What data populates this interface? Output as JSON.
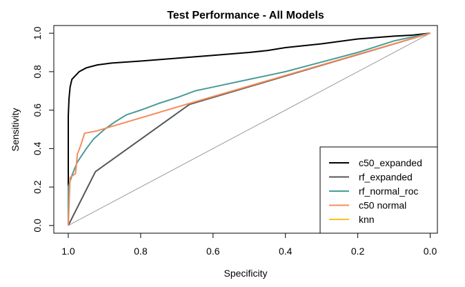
{
  "chart_data": {
    "type": "line",
    "title": "Test Performance - All Models",
    "xlabel": "Specificity",
    "ylabel": "Sensitivity",
    "xlim": [
      1.04,
      -0.02
    ],
    "ylim": [
      -0.04,
      1.04
    ],
    "x_reversed": true,
    "x_ticks": [
      {
        "value": 1.0,
        "label": "1.0"
      },
      {
        "value": 0.8,
        "label": "0.8"
      },
      {
        "value": 0.6,
        "label": "0.6"
      },
      {
        "value": 0.4,
        "label": "0.4"
      },
      {
        "value": 0.2,
        "label": "0.2"
      },
      {
        "value": 0.0,
        "label": "0.0"
      }
    ],
    "y_ticks": [
      {
        "value": 0.0,
        "label": "0.0"
      },
      {
        "value": 0.2,
        "label": "0.2"
      },
      {
        "value": 0.4,
        "label": "0.4"
      },
      {
        "value": 0.6,
        "label": "0.6"
      },
      {
        "value": 0.8,
        "label": "0.8"
      },
      {
        "value": 1.0,
        "label": "1.0"
      }
    ],
    "grid": false,
    "legend_position": "bottom-right",
    "reference_line": {
      "from": [
        1.0,
        0.0
      ],
      "to": [
        0.0,
        1.0
      ],
      "color": "#999999"
    },
    "series": [
      {
        "name": "c50_expanded",
        "color": "#000000",
        "points": [
          [
            1.0,
            0.0
          ],
          [
            1.0,
            0.57
          ],
          [
            0.998,
            0.66
          ],
          [
            0.995,
            0.72
          ],
          [
            0.99,
            0.76
          ],
          [
            0.98,
            0.78
          ],
          [
            0.97,
            0.8
          ],
          [
            0.95,
            0.82
          ],
          [
            0.92,
            0.835
          ],
          [
            0.88,
            0.845
          ],
          [
            0.8,
            0.855
          ],
          [
            0.7,
            0.87
          ],
          [
            0.6,
            0.885
          ],
          [
            0.5,
            0.9
          ],
          [
            0.45,
            0.91
          ],
          [
            0.4,
            0.925
          ],
          [
            0.3,
            0.945
          ],
          [
            0.2,
            0.97
          ],
          [
            0.1,
            0.985
          ],
          [
            0.05,
            0.99
          ],
          [
            0.0,
            1.0
          ]
        ]
      },
      {
        "name": "rf_expanded",
        "color": "#555555",
        "points": [
          [
            1.0,
            0.0
          ],
          [
            0.925,
            0.28
          ],
          [
            0.665,
            0.63
          ],
          [
            0.0,
            1.0
          ]
        ]
      },
      {
        "name": "rf_normal_roc",
        "color": "#4a9a96",
        "points": [
          [
            1.0,
            0.0
          ],
          [
            1.0,
            0.2
          ],
          [
            0.99,
            0.26
          ],
          [
            0.975,
            0.33
          ],
          [
            0.95,
            0.4
          ],
          [
            0.93,
            0.45
          ],
          [
            0.9,
            0.5
          ],
          [
            0.87,
            0.54
          ],
          [
            0.84,
            0.575
          ],
          [
            0.8,
            0.6
          ],
          [
            0.75,
            0.635
          ],
          [
            0.7,
            0.665
          ],
          [
            0.65,
            0.7
          ],
          [
            0.6,
            0.72
          ],
          [
            0.5,
            0.76
          ],
          [
            0.4,
            0.8
          ],
          [
            0.3,
            0.85
          ],
          [
            0.2,
            0.9
          ],
          [
            0.1,
            0.96
          ],
          [
            0.0,
            1.0
          ]
        ]
      },
      {
        "name": "c50 normal",
        "color": "#f58c5a",
        "points": [
          [
            1.0,
            0.0
          ],
          [
            0.995,
            0.25
          ],
          [
            0.98,
            0.27
          ],
          [
            0.975,
            0.37
          ],
          [
            0.965,
            0.42
          ],
          [
            0.955,
            0.48
          ],
          [
            0.925,
            0.49
          ],
          [
            0.665,
            0.635
          ],
          [
            0.0,
            1.0
          ]
        ]
      },
      {
        "name": "knn",
        "color": "#f5c518",
        "points": []
      }
    ]
  }
}
